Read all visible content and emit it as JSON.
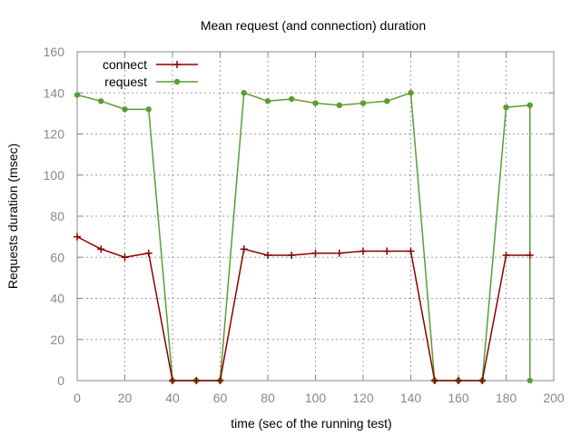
{
  "chart_data": {
    "type": "line",
    "title": "Mean request (and connection) duration",
    "xlabel": "time (sec of the running test)",
    "ylabel": "Requests duration (msec)",
    "xlim": [
      0,
      200
    ],
    "ylim": [
      0,
      160
    ],
    "xticks": [
      0,
      20,
      40,
      60,
      80,
      100,
      120,
      140,
      160,
      180,
      200
    ],
    "yticks": [
      0,
      20,
      40,
      60,
      80,
      100,
      120,
      140,
      160
    ],
    "grid": true,
    "legend_position": "top-left",
    "series": [
      {
        "name": "connect",
        "color": "#8b0000",
        "marker": "plus",
        "x": [
          0,
          10,
          20,
          30,
          40,
          50,
          60,
          70,
          80,
          90,
          100,
          110,
          120,
          130,
          140,
          150,
          160,
          170,
          180,
          190
        ],
        "y": [
          70,
          64,
          60,
          62,
          0,
          0,
          0,
          64,
          61,
          61,
          62,
          62,
          63,
          63,
          63,
          0,
          0,
          0,
          61,
          61
        ]
      },
      {
        "name": "request",
        "color": "#5a9e32",
        "marker": "circle",
        "x": [
          0,
          10,
          20,
          30,
          40,
          50,
          60,
          70,
          80,
          90,
          100,
          110,
          120,
          130,
          140,
          150,
          160,
          170,
          180,
          190,
          190
        ],
        "y": [
          139,
          136,
          132,
          132,
          0,
          0,
          0,
          140,
          136,
          137,
          135,
          134,
          135,
          136,
          140,
          0,
          0,
          0,
          133,
          134,
          0
        ]
      }
    ]
  }
}
